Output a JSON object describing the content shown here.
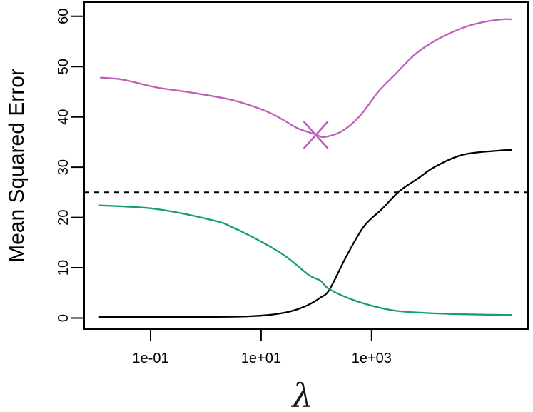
{
  "chart_data": {
    "type": "line",
    "title": "",
    "xlabel": "λ",
    "ylabel": "Mean Squared Error",
    "x_scale": "log10",
    "grid": false,
    "legend": "none",
    "x_range_log10": [
      -2.2,
      5.83
    ],
    "y_range": [
      -2.2,
      62.8
    ],
    "x_ticks": [
      {
        "log10": -1,
        "label": "1e-01"
      },
      {
        "log10": 1,
        "label": "1e+01"
      },
      {
        "log10": 3,
        "label": "1e+03"
      }
    ],
    "y_ticks": [
      {
        "value": 0,
        "label": "0"
      },
      {
        "value": 10,
        "label": "10"
      },
      {
        "value": 20,
        "label": "20"
      },
      {
        "value": 30,
        "label": "30"
      },
      {
        "value": 40,
        "label": "40"
      },
      {
        "value": 50,
        "label": "50"
      },
      {
        "value": 60,
        "label": "60"
      }
    ],
    "series": [
      {
        "name": "purple-curve",
        "color": "#C05FB9",
        "line_width": 2.3,
        "points_log10lambda_mse": [
          [
            -1.9,
            47.8
          ],
          [
            -1.5,
            47.4
          ],
          [
            -0.91,
            45.9
          ],
          [
            -0.3,
            44.9
          ],
          [
            0.38,
            43.6
          ],
          [
            0.8,
            42.3
          ],
          [
            1.18,
            40.7
          ],
          [
            1.43,
            39.2
          ],
          [
            1.67,
            37.7
          ],
          [
            1.99,
            36.5
          ],
          [
            2.15,
            36.0
          ],
          [
            2.47,
            37.2
          ],
          [
            2.79,
            40.2
          ],
          [
            3.12,
            45.0
          ],
          [
            3.44,
            48.6
          ],
          [
            3.76,
            52.2
          ],
          [
            4.08,
            54.7
          ],
          [
            4.41,
            56.6
          ],
          [
            4.73,
            58.0
          ],
          [
            5.05,
            58.9
          ],
          [
            5.37,
            59.4
          ],
          [
            5.53,
            59.4
          ]
        ]
      },
      {
        "name": "black-curve",
        "color": "#000000",
        "line_width": 2.3,
        "points_log10lambda_mse": [
          [
            -1.92,
            0.2
          ],
          [
            -0.5,
            0.2
          ],
          [
            0.79,
            0.35
          ],
          [
            1.44,
            1.1
          ],
          [
            1.83,
            2.5
          ],
          [
            2.08,
            4.1
          ],
          [
            2.24,
            5.7
          ],
          [
            2.54,
            12.2
          ],
          [
            2.86,
            18.2
          ],
          [
            3.18,
            21.6
          ],
          [
            3.5,
            25.2
          ],
          [
            3.83,
            27.7
          ],
          [
            4.15,
            30.1
          ],
          [
            4.66,
            32.5
          ],
          [
            5.31,
            33.3
          ],
          [
            5.53,
            33.4
          ]
        ]
      },
      {
        "name": "green-curve",
        "color": "#189B77",
        "line_width": 2.3,
        "points_log10lambda_mse": [
          [
            -1.92,
            22.4
          ],
          [
            -0.91,
            21.7
          ],
          [
            0.14,
            19.4
          ],
          [
            0.51,
            17.9
          ],
          [
            1.0,
            15.2
          ],
          [
            1.44,
            12.3
          ],
          [
            1.86,
            8.6
          ],
          [
            2.08,
            7.4
          ],
          [
            2.24,
            5.7
          ],
          [
            2.73,
            3.35
          ],
          [
            3.37,
            1.56
          ],
          [
            4.02,
            1.0
          ],
          [
            4.66,
            0.75
          ],
          [
            5.53,
            0.6
          ]
        ]
      }
    ],
    "reference_line": {
      "y": 25,
      "style": "dashed",
      "color": "#000000"
    },
    "marker": {
      "shape": "x",
      "color": "#C05FB9",
      "log10_lambda": 1.99,
      "mse": 36.4
    }
  }
}
